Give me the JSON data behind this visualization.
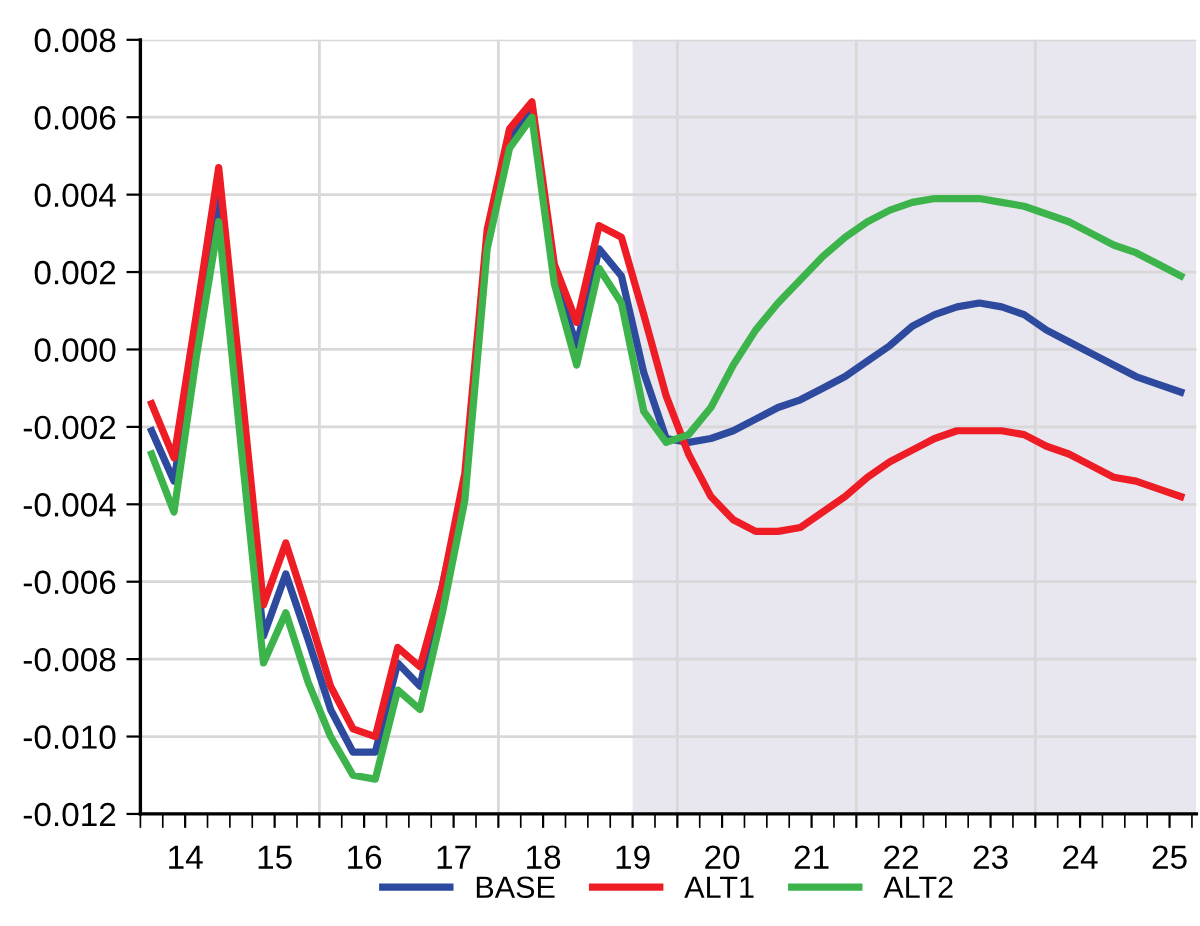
{
  "chart_data": {
    "type": "line",
    "legend": "bottom",
    "grid": true,
    "line_style": "solid",
    "marker": "none",
    "x": [
      13.625,
      13.875,
      14.125,
      14.375,
      14.625,
      14.875,
      15.125,
      15.375,
      15.625,
      15.875,
      16.125,
      16.375,
      16.625,
      16.875,
      17.125,
      17.375,
      17.625,
      17.875,
      18.125,
      18.375,
      18.625,
      18.875,
      19.125,
      19.375,
      19.625,
      19.875,
      20.125,
      20.375,
      20.625,
      20.875,
      21.125,
      21.375,
      21.625,
      21.875,
      22.125,
      22.375,
      22.625,
      22.875,
      23.125,
      23.375,
      23.625,
      23.875,
      24.125,
      24.375,
      24.625,
      24.875,
      25.125
    ],
    "series": [
      {
        "name": "BASE",
        "color": "#2e4a9e",
        "values": [
          -0.0021,
          -0.0034,
          0.0003,
          0.0039,
          -0.0017,
          -0.0074,
          -0.0058,
          -0.0075,
          -0.0093,
          -0.0104,
          -0.0104,
          -0.0081,
          -0.0087,
          -0.0061,
          -0.0035,
          0.0029,
          0.0055,
          0.0062,
          0.0019,
          0.0001,
          0.0026,
          0.0019,
          -0.0006,
          -0.0023,
          -0.0024,
          -0.0023,
          -0.0021,
          -0.0018,
          -0.0015,
          -0.0013,
          -0.001,
          -0.0007,
          -0.0003,
          0.0001,
          0.0006,
          0.0009,
          0.0011,
          0.0012,
          0.0011,
          0.0009,
          0.0005,
          0.0002,
          -0.0001,
          -0.0004,
          -0.0007,
          -0.0009,
          -0.0011
        ]
      },
      {
        "name": "ALT1",
        "color": "#ee1c25",
        "values": [
          -0.0014,
          -0.0028,
          0.0009,
          0.0047,
          -0.0009,
          -0.0066,
          -0.005,
          -0.0068,
          -0.0087,
          -0.0098,
          -0.01,
          -0.0077,
          -0.0082,
          -0.0061,
          -0.0032,
          0.0031,
          0.0057,
          0.0064,
          0.0022,
          0.0007,
          0.0032,
          0.0029,
          0.0009,
          -0.0012,
          -0.0027,
          -0.0038,
          -0.0044,
          -0.0047,
          -0.0047,
          -0.0046,
          -0.0042,
          -0.0038,
          -0.0033,
          -0.0029,
          -0.0026,
          -0.0023,
          -0.0021,
          -0.0021,
          -0.0021,
          -0.0022,
          -0.0025,
          -0.0027,
          -0.003,
          -0.0033,
          -0.0034,
          -0.0036,
          -0.0038
        ]
      },
      {
        "name": "ALT2",
        "color": "#3cb44b",
        "values": [
          -0.0027,
          -0.0042,
          -0.0002,
          0.0033,
          -0.0025,
          -0.0081,
          -0.0068,
          -0.0086,
          -0.01,
          -0.011,
          -0.0111,
          -0.0088,
          -0.0093,
          -0.0068,
          -0.0039,
          0.0026,
          0.0052,
          0.006,
          0.0017,
          -0.0004,
          0.0021,
          0.0012,
          -0.0016,
          -0.0024,
          -0.0022,
          -0.0015,
          -0.0004,
          0.0005,
          0.0012,
          0.0018,
          0.0024,
          0.0029,
          0.0033,
          0.0036,
          0.0038,
          0.0039,
          0.0039,
          0.0039,
          0.0038,
          0.0037,
          0.0035,
          0.0033,
          0.003,
          0.0027,
          0.0025,
          0.0022,
          0.0019
        ]
      }
    ],
    "xlim": [
      13.5,
      25.3
    ],
    "xticks": [
      14,
      15,
      16,
      17,
      18,
      19,
      20,
      21,
      22,
      23,
      24,
      25,
      {
        "value": 15.5,
        "label": null
      },
      {
        "value": 17.5,
        "label": null
      },
      {
        "value": 19.5,
        "label": null
      },
      {
        "value": 21.5,
        "label": null
      },
      {
        "value": 23.5,
        "label": null
      }
    ],
    "ylim": [
      -0.012,
      0.008
    ],
    "yticks": [
      {
        "value": -0.012,
        "label": "-0.012"
      },
      {
        "value": -0.01,
        "label": "-0.010"
      },
      {
        "value": -0.008,
        "label": "-0.008"
      },
      {
        "value": -0.006,
        "label": "-0.006"
      },
      {
        "value": -0.004,
        "label": "-0.004"
      },
      {
        "value": -0.002,
        "label": "-0.002"
      },
      {
        "value": 0,
        "label": "0.000"
      },
      {
        "value": 0.002,
        "label": "0.002"
      },
      {
        "value": 0.004,
        "label": "0.004"
      },
      {
        "value": 0.006,
        "label": "0.006"
      },
      {
        "value": 0.008,
        "label": "0.008"
      }
    ],
    "bands": [
      {
        "axis": "x",
        "from": 19.0,
        "to": 25.3,
        "color": "#e8e6ee"
      }
    ]
  }
}
